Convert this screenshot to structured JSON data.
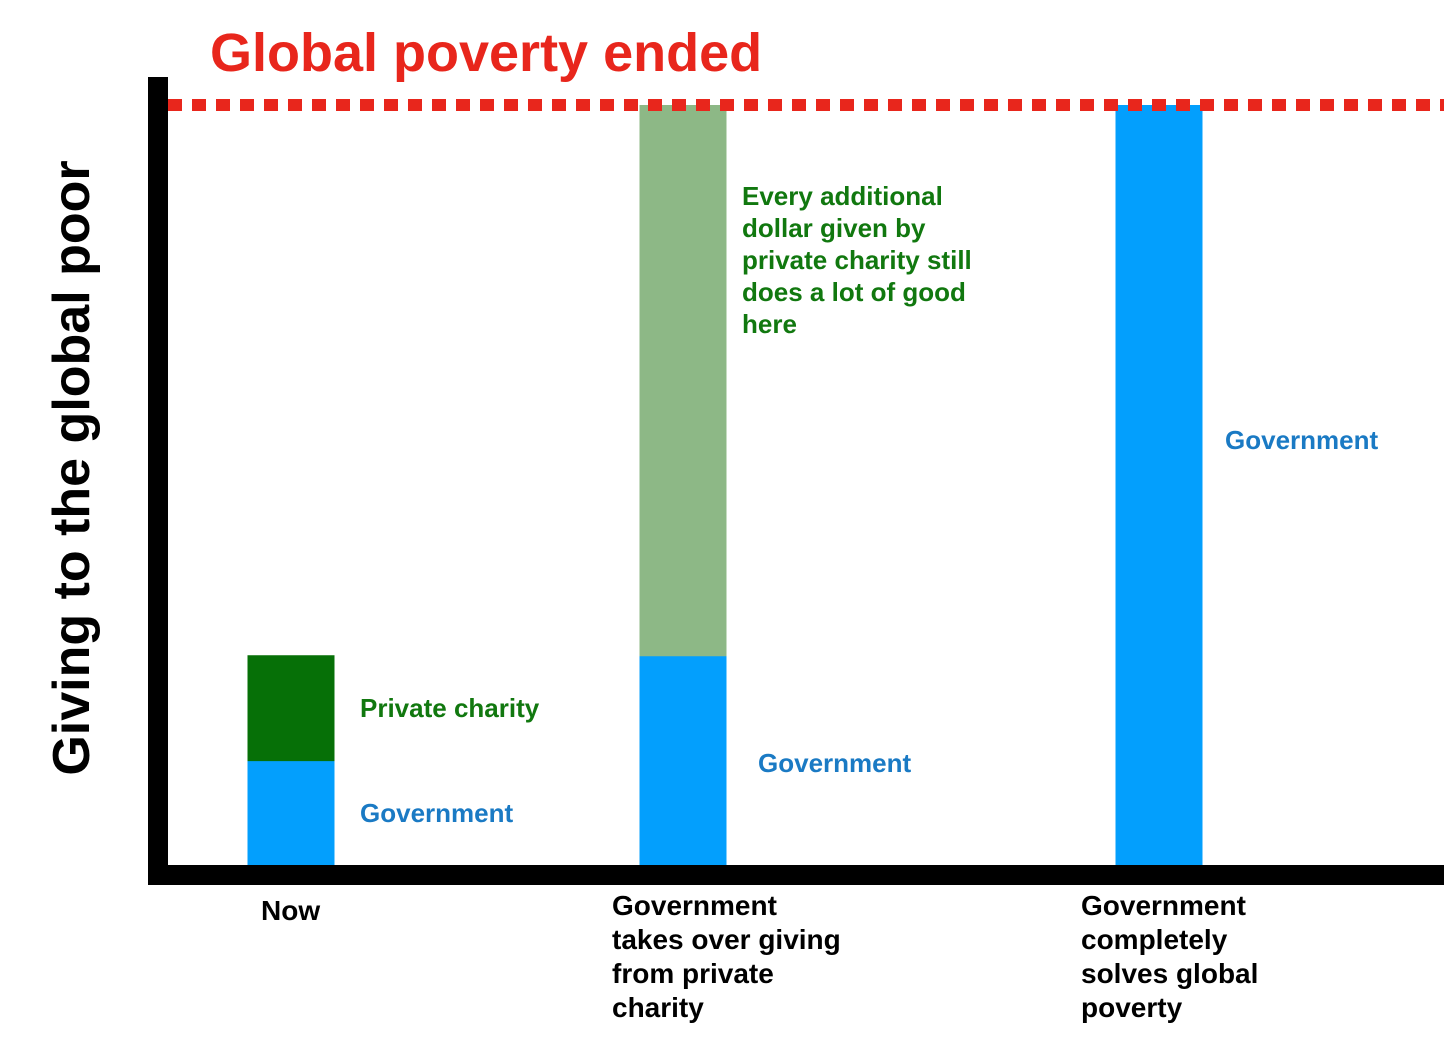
{
  "chart_data": {
    "type": "bar",
    "stacked": true,
    "title": "Global poverty ended",
    "ylabel": "Giving to the global poor",
    "xlabel": "",
    "ylim": [
      0,
      100
    ],
    "threshold": {
      "label": "Global poverty ended",
      "value": 100,
      "style": "dotted",
      "color": "#e8261c"
    },
    "categories": [
      "Now",
      "Government takes over giving from private charity",
      "Government completely solves global poverty"
    ],
    "series": [
      {
        "name": "Government",
        "values": [
          13.8,
          27.6,
          100
        ],
        "colors": [
          "#039ffd",
          "#039ffd",
          "#039ffd"
        ]
      },
      {
        "name": "Private charity",
        "values": [
          13.8,
          72.4,
          0
        ],
        "colors": [
          "#067007",
          "#8db886",
          "#8db886"
        ]
      }
    ],
    "annotations": {
      "now_government": "Government",
      "now_private": "Private charity",
      "takeover_government": "Government",
      "takeover_private": "Every additional dollar given by private charity still does a lot of good here",
      "solves_government": "Government"
    }
  }
}
